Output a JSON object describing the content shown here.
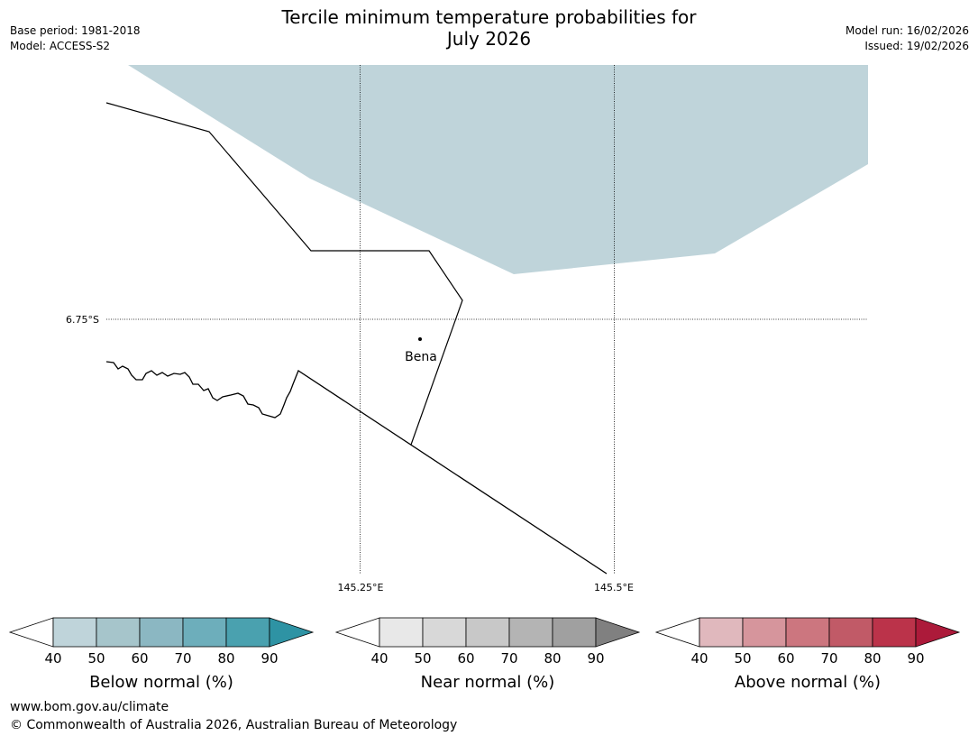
{
  "header": {
    "title_line1": "Tercile minimum temperature probabilities for",
    "title_line2": "July 2026",
    "base_period": "Base period: 1981-2018",
    "model": "Model: ACCESS-S2",
    "model_run": "Model run: 16/02/2026",
    "issued": "Issued: 19/02/2026"
  },
  "map": {
    "gridlines": {
      "lat_label": "6.75°S",
      "lon_labels": [
        "145.25°E",
        "145.5°E"
      ]
    },
    "place": {
      "name": "Bena"
    },
    "shading": {
      "category": "below",
      "level": "40-50",
      "color": "#bfd4da"
    }
  },
  "legends": [
    {
      "title": "Below normal (%)",
      "ticks": [
        "40",
        "50",
        "60",
        "70",
        "80",
        "90"
      ],
      "colors": [
        "#bfd4da",
        "#a6c5cb",
        "#8bb7c2",
        "#6daebb",
        "#4aa1af",
        "#2e93a4"
      ]
    },
    {
      "title": "Near normal (%)",
      "ticks": [
        "40",
        "50",
        "60",
        "70",
        "80",
        "90"
      ],
      "colors": [
        "#e8e8e8",
        "#d8d8d8",
        "#c8c8c8",
        "#b4b4b4",
        "#a0a0a0",
        "#808080"
      ]
    },
    {
      "title": "Above normal (%)",
      "ticks": [
        "40",
        "50",
        "60",
        "70",
        "80",
        "90"
      ],
      "colors": [
        "#e0b8bd",
        "#d6959c",
        "#cc767f",
        "#c15a67",
        "#bb334a",
        "#ac1a3a"
      ]
    }
  ],
  "footer": {
    "url": "www.bom.gov.au/climate",
    "copyright": "© Commonwealth of Australia 2026, Australian Bureau of Meteorology"
  }
}
